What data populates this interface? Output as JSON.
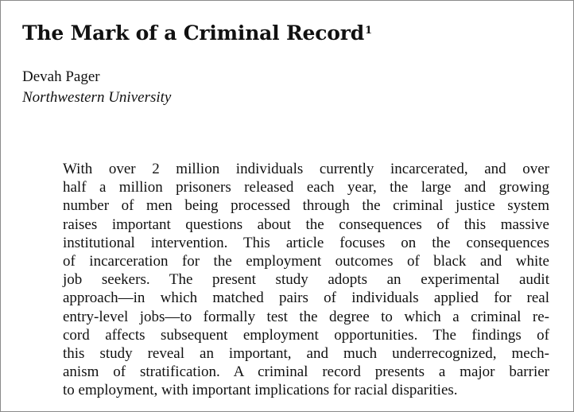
{
  "paper": {
    "title": "The Mark of a Criminal Record",
    "title_footnote": "1",
    "author": "Devah Pager",
    "affiliation": "Northwestern University",
    "abstract_lines": [
      "With over 2 million individuals currently incarcerated, and over",
      "half a million prisoners released each year, the large and growing",
      "number of men being processed through the criminal justice system",
      "raises important questions about the consequences of this massive",
      "institutional intervention. This article focuses on the consequences",
      "of incarceration for the employment outcomes of black and white",
      "job seekers. The present study adopts an experimental audit",
      "approach—in which matched pairs of individuals applied for real",
      "entry-level jobs—to formally test the degree to which a criminal re-",
      "cord affects subsequent employment opportunities. The findings of",
      "this study reveal an important, and much underrecognized, mech-",
      "anism of stratification. A criminal record presents a major barrier",
      "to employment, with important implications for racial disparities."
    ]
  }
}
